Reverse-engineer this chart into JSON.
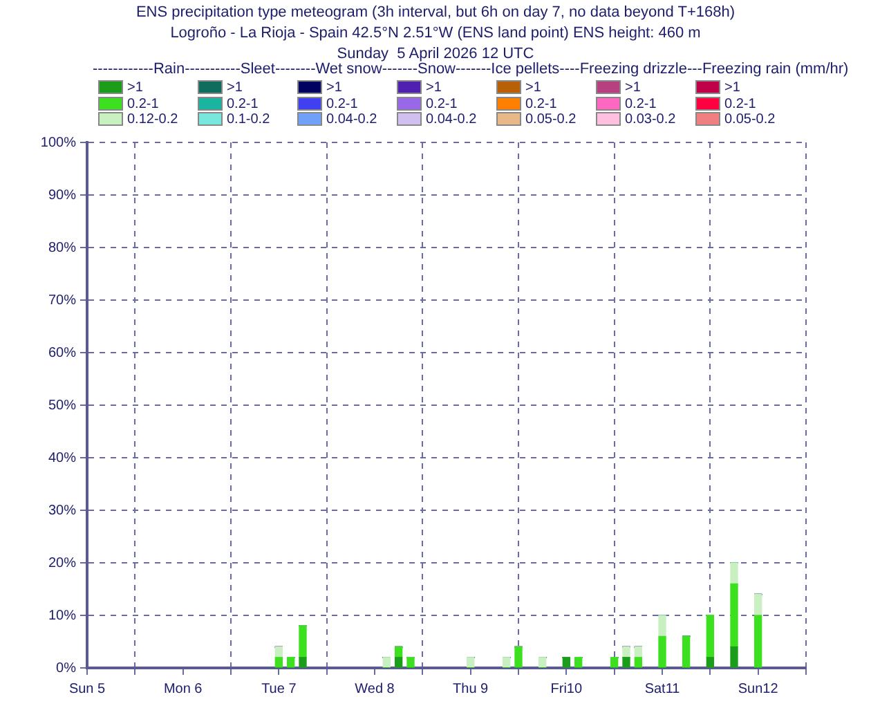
{
  "chart_data": {
    "type": "bar",
    "stacked": true,
    "title": "ENS precipitation type meteogram (3h interval, but 6h on day 7, no data beyond T+168h)",
    "subtitle": "Logroño - La Rioja - Spain 42.5°N 2.51°W (ENS land point) ENS height: 460 m\nSunday  5 April 2026 12 UTC",
    "legend_title": "------------Rain-----------Sleet--------Wet snow-------Snow-------Ice pellets----Freezing drizzle---Freezing rain (mm/hr)",
    "legend": "top",
    "grid": true,
    "x": [
      "2026-04-07T12:00",
      "2026-04-07T15:00",
      "2026-04-07T18:00",
      "2026-04-08T15:00",
      "2026-04-08T18:00",
      "2026-04-08T21:00",
      "2026-04-09T12:00",
      "2026-04-09T21:00",
      "2026-04-10T00:00",
      "2026-04-10T06:00",
      "2026-04-10T12:00",
      "2026-04-10T15:00",
      "2026-04-11T00:00",
      "2026-04-11T03:00",
      "2026-04-11T06:00",
      "2026-04-11T12:00",
      "2026-04-11T18:00",
      "2026-04-12T00:00",
      "2026-04-12T06:00",
      "2026-04-12T12:00"
    ],
    "xlim": [
      "2026-04-05T12:00",
      "2026-04-13T00:00"
    ],
    "xticks": [
      {
        "value": "2026-04-05T12:00",
        "label": "Sun 5"
      },
      {
        "value": "2026-04-06T00:00",
        "label": null
      },
      {
        "value": "2026-04-06T12:00",
        "label": "Mon 6"
      },
      {
        "value": "2026-04-07T00:00",
        "label": null
      },
      {
        "value": "2026-04-07T12:00",
        "label": "Tue 7"
      },
      {
        "value": "2026-04-08T00:00",
        "label": null
      },
      {
        "value": "2026-04-08T12:00",
        "label": "Wed 8"
      },
      {
        "value": "2026-04-09T00:00",
        "label": null
      },
      {
        "value": "2026-04-09T12:00",
        "label": "Thu 9"
      },
      {
        "value": "2026-04-10T00:00",
        "label": null
      },
      {
        "value": "2026-04-10T12:00",
        "label": "Fri10"
      },
      {
        "value": "2026-04-11T00:00",
        "label": null
      },
      {
        "value": "2026-04-11T12:00",
        "label": "Sat11"
      },
      {
        "value": "2026-04-12T00:00",
        "label": null
      },
      {
        "value": "2026-04-12T12:00",
        "label": "Sun12"
      },
      {
        "value": "2026-04-13T00:00",
        "label": null
      }
    ],
    "ylim": [
      0,
      100
    ],
    "yticks": [
      {
        "value": 0,
        "label": "0%"
      },
      {
        "value": 10,
        "label": "10%"
      },
      {
        "value": 20,
        "label": "20%"
      },
      {
        "value": 30,
        "label": "30%"
      },
      {
        "value": 40,
        "label": "40%"
      },
      {
        "value": 50,
        "label": "50%"
      },
      {
        "value": 60,
        "label": "60%"
      },
      {
        "value": 70,
        "label": "70%"
      },
      {
        "value": 80,
        "label": "80%"
      },
      {
        "value": 90,
        "label": "90%"
      },
      {
        "value": 100,
        "label": "100%"
      }
    ],
    "series": [
      {
        "name": ">1",
        "color": "#1a9e1a",
        "values": [
          0,
          0,
          2,
          0,
          2,
          0,
          0,
          0,
          0,
          0,
          2,
          0,
          0,
          2,
          0,
          0,
          0,
          2,
          4,
          0
        ]
      },
      {
        "name": "0.2-1",
        "color": "#3ce01e",
        "values": [
          2,
          2,
          6,
          0,
          2,
          2,
          0,
          0,
          4,
          0,
          0,
          2,
          2,
          0,
          2,
          6,
          6,
          8,
          12,
          10
        ]
      },
      {
        "name": "0.12-0.2",
        "color": "#c8f0c0",
        "values": [
          2,
          0,
          0,
          2,
          0,
          0,
          2,
          2,
          0,
          2,
          0,
          0,
          0,
          2,
          2,
          4,
          0,
          0,
          4,
          4
        ]
      },
      {
        "name": ">1",
        "color": "#0e6e5e",
        "values": [
          0,
          0,
          0,
          0,
          0,
          0,
          0,
          0,
          0,
          0,
          0,
          0,
          0,
          0,
          0,
          0,
          0,
          0,
          0,
          0
        ]
      },
      {
        "name": "0.2-1",
        "color": "#1ab4a0",
        "values": [
          0,
          0,
          0,
          0,
          0,
          0,
          0,
          0,
          0,
          0,
          0,
          0,
          0,
          0,
          0,
          0,
          0,
          0,
          0,
          0
        ]
      },
      {
        "name": "0.1-0.2",
        "color": "#78e8dc",
        "values": [
          0,
          0,
          0,
          0,
          0,
          0,
          0,
          0,
          0,
          0,
          0,
          0,
          0,
          0,
          0,
          0,
          0,
          0,
          0,
          0
        ]
      },
      {
        "name": ">1",
        "color": "#000060",
        "values": [
          0,
          0,
          0,
          0,
          0,
          0,
          0,
          0,
          0,
          0,
          0,
          0,
          0,
          0,
          0,
          0,
          0,
          0,
          0,
          0
        ]
      },
      {
        "name": "0.2-1",
        "color": "#4040f0",
        "values": [
          0,
          0,
          0,
          0,
          0,
          0,
          0,
          0,
          0,
          0,
          0,
          0,
          0,
          0,
          0,
          0,
          0,
          0,
          0,
          0
        ]
      },
      {
        "name": "0.04-0.2",
        "color": "#70a0f8",
        "values": [
          0,
          0,
          0,
          0,
          0,
          0,
          0,
          0,
          0,
          0,
          0,
          0,
          0,
          0,
          0,
          0,
          0,
          0,
          0,
          0
        ]
      },
      {
        "name": ">1",
        "color": "#5020b0",
        "values": [
          0,
          0,
          0,
          0,
          0,
          0,
          0,
          0,
          0,
          0,
          0,
          0,
          0,
          0,
          0,
          0,
          0,
          0,
          0,
          0
        ]
      },
      {
        "name": "0.2-1",
        "color": "#9868e8",
        "values": [
          0,
          0,
          0,
          0,
          0,
          0,
          0,
          0,
          0,
          0,
          0,
          0,
          0,
          0,
          0,
          0,
          0,
          0,
          0,
          0
        ]
      },
      {
        "name": "0.04-0.2",
        "color": "#d0c0f0",
        "values": [
          0,
          0,
          0,
          0,
          0,
          0,
          0,
          0,
          0,
          0,
          0,
          0,
          0,
          0,
          0,
          0,
          0,
          0,
          0,
          0
        ]
      },
      {
        "name": ">1",
        "color": "#b86008",
        "values": [
          0,
          0,
          0,
          0,
          0,
          0,
          0,
          0,
          0,
          0,
          0,
          0,
          0,
          0,
          0,
          0,
          0,
          0,
          0,
          0
        ]
      },
      {
        "name": "0.2-1",
        "color": "#ff8000",
        "values": [
          0,
          0,
          0,
          0,
          0,
          0,
          0,
          0,
          0,
          0,
          0,
          0,
          0,
          0,
          0,
          0,
          0,
          0,
          0,
          0
        ]
      },
      {
        "name": "0.05-0.2",
        "color": "#e8b888",
        "values": [
          0,
          0,
          0,
          0,
          0,
          0,
          0,
          0,
          0,
          0,
          0,
          0,
          0,
          0,
          0,
          0,
          0,
          0,
          0,
          0
        ]
      },
      {
        "name": ">1",
        "color": "#b84080",
        "values": [
          0,
          0,
          0,
          0,
          0,
          0,
          0,
          0,
          0,
          0,
          0,
          0,
          0,
          0,
          0,
          0,
          0,
          0,
          0,
          0
        ]
      },
      {
        "name": "0.2-1",
        "color": "#ff68c0",
        "values": [
          0,
          0,
          0,
          0,
          0,
          0,
          0,
          0,
          0,
          0,
          0,
          0,
          0,
          0,
          0,
          0,
          0,
          0,
          0,
          0
        ]
      },
      {
        "name": "0.03-0.2",
        "color": "#ffc0e0",
        "values": [
          0,
          0,
          0,
          0,
          0,
          0,
          0,
          0,
          0,
          0,
          0,
          0,
          0,
          0,
          0,
          0,
          0,
          0,
          0,
          0
        ]
      },
      {
        "name": ">1",
        "color": "#c00048",
        "values": [
          0,
          0,
          0,
          0,
          0,
          0,
          0,
          0,
          0,
          0,
          0,
          0,
          0,
          0,
          0,
          0,
          0,
          0,
          0,
          0
        ]
      },
      {
        "name": "0.2-1",
        "color": "#ff0040",
        "values": [
          0,
          0,
          0,
          0,
          0,
          0,
          0,
          0,
          0,
          0,
          0,
          0,
          0,
          0,
          0,
          0,
          0,
          0,
          0,
          0
        ]
      },
      {
        "name": "0.05-0.2",
        "color": "#f08080",
        "values": [
          0,
          0,
          0,
          0,
          0,
          0,
          0,
          0,
          0,
          0,
          0,
          0,
          0,
          0,
          0,
          0,
          0,
          0,
          0,
          0
        ]
      }
    ]
  }
}
